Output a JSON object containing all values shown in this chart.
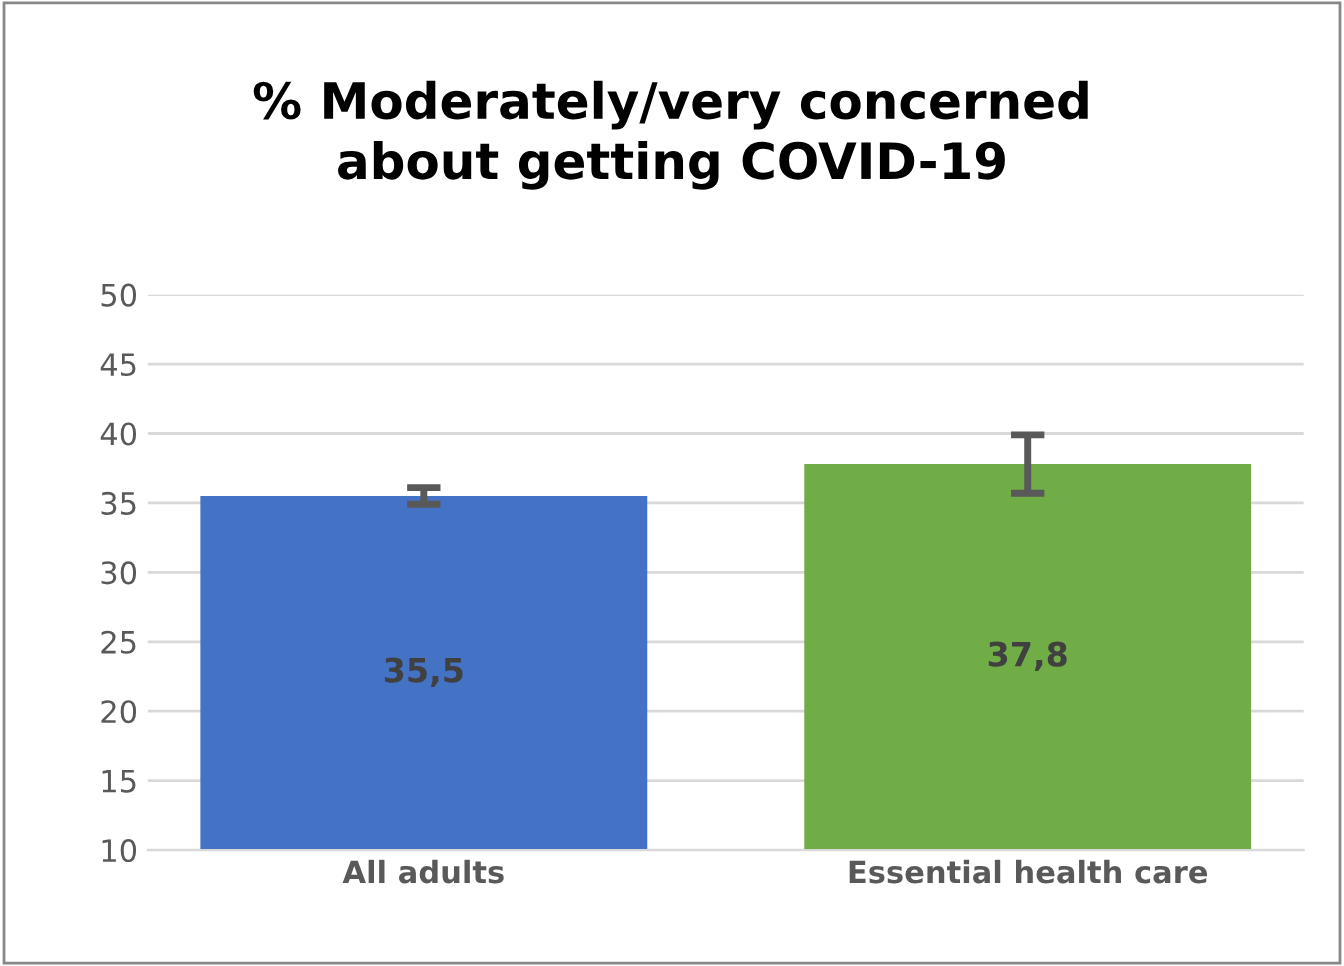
{
  "chart_data": {
    "type": "bar",
    "title": "% Moderately/very concerned\nabout getting COVID-19",
    "categories": [
      "All adults",
      "Essential health care"
    ],
    "values": [
      35.5,
      37.8
    ],
    "value_labels": [
      "35,5",
      "37,8"
    ],
    "colors": [
      "#4472c4",
      "#70ad47"
    ],
    "errors": [
      [
        34.9,
        36.1
      ],
      [
        35.7,
        39.9
      ]
    ],
    "ylim": [
      10,
      50
    ],
    "yticks": [
      10,
      15,
      20,
      25,
      30,
      35,
      40,
      45,
      50
    ],
    "grid": "y"
  }
}
